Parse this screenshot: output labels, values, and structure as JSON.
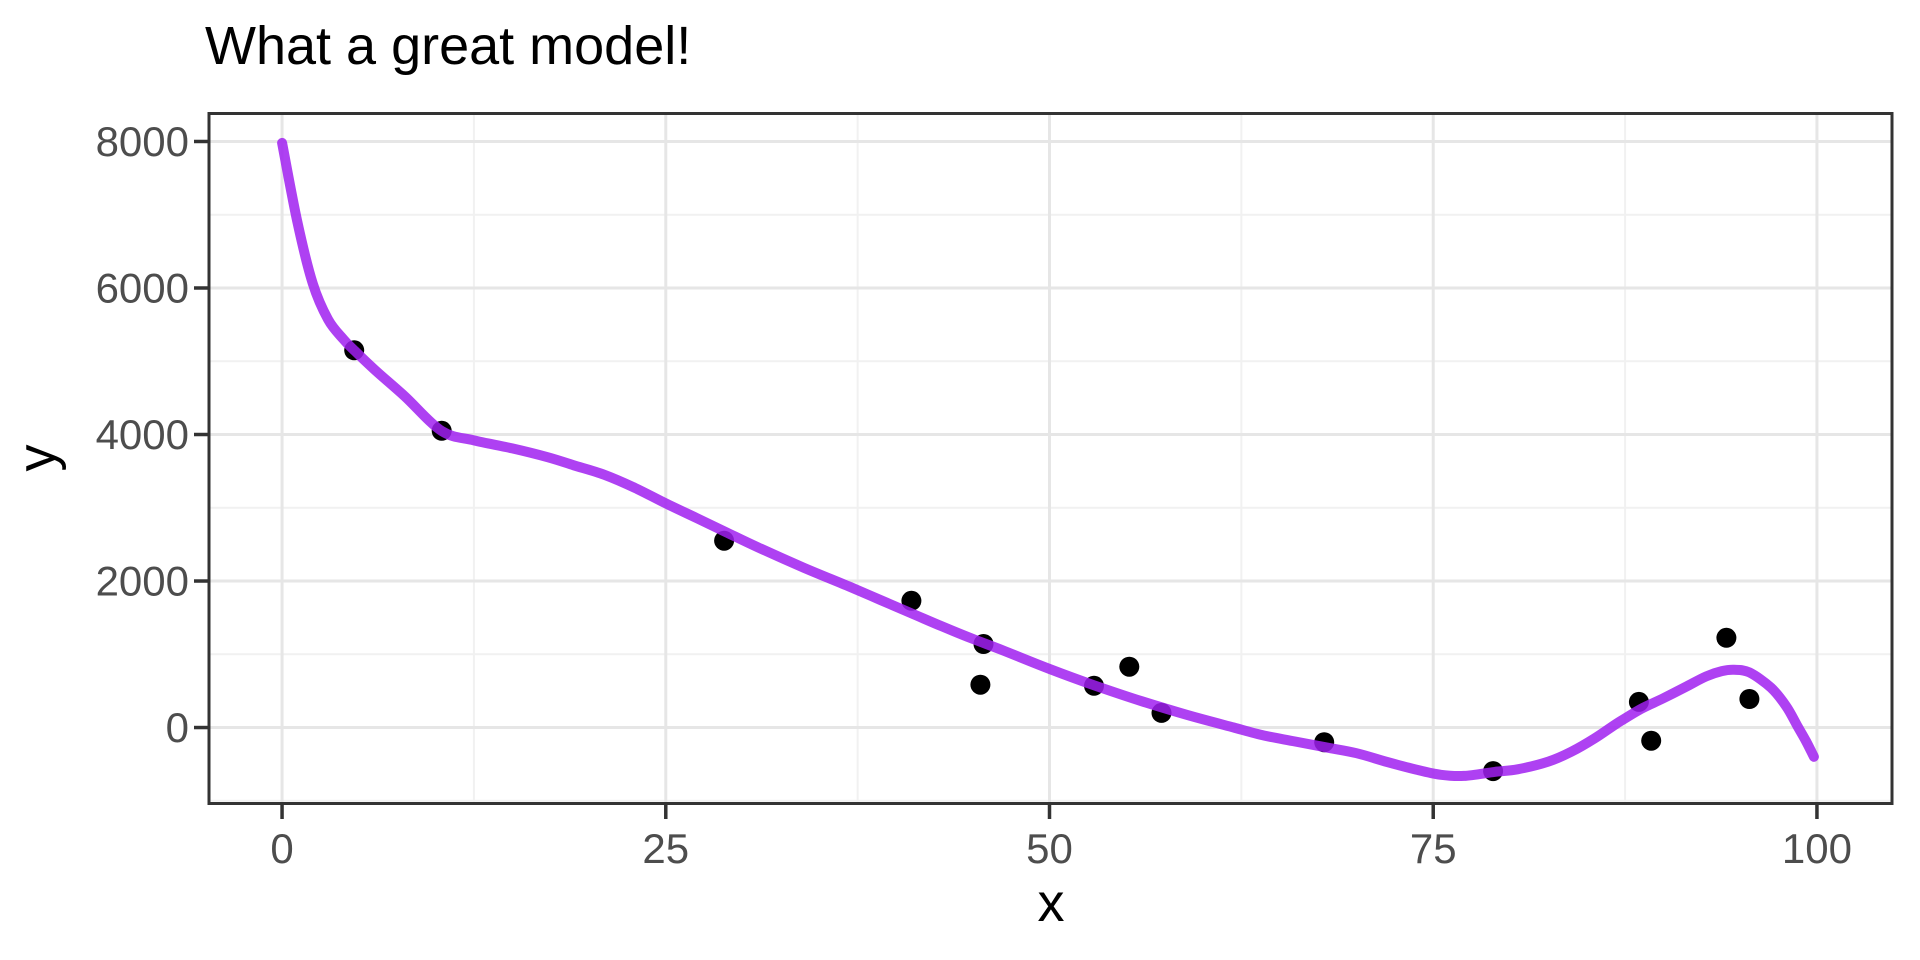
{
  "page": {
    "background": "#FFFFFF"
  },
  "chart_data": {
    "type": "scatter",
    "title": "What a great model!",
    "xlabel": "x",
    "ylabel": "y",
    "x_ticks": [
      0,
      25,
      50,
      75,
      100
    ],
    "y_ticks": [
      0,
      2000,
      4000,
      6000,
      8000
    ],
    "x_minor_ticks": [
      12.5,
      37.5,
      62.5,
      87.5
    ],
    "y_minor_ticks": [
      -1000,
      1000,
      3000,
      5000,
      7000
    ],
    "xlim": [
      -4.76,
      104.89
    ],
    "ylim": [
      -1037,
      8382
    ],
    "grid": "major+minor",
    "legend_position": "none",
    "series": [
      {
        "name": "observations",
        "type": "scatter",
        "points": [
          [
            4.7,
            5150
          ],
          [
            10.4,
            4050
          ],
          [
            28.8,
            2550
          ],
          [
            41.0,
            1730
          ],
          [
            45.7,
            1140
          ],
          [
            45.5,
            585
          ],
          [
            52.9,
            570
          ],
          [
            55.2,
            830
          ],
          [
            57.3,
            200
          ],
          [
            67.9,
            -200
          ],
          [
            78.9,
            -595
          ],
          [
            88.4,
            350
          ],
          [
            89.2,
            -180
          ],
          [
            94.1,
            1225
          ],
          [
            95.6,
            390
          ]
        ]
      },
      {
        "name": "polynomial-fit",
        "type": "line",
        "points": [
          [
            0,
            7980
          ],
          [
            1,
            6900
          ],
          [
            2,
            6060
          ],
          [
            3,
            5570
          ],
          [
            4,
            5300
          ],
          [
            4.7,
            5150
          ],
          [
            6,
            4890
          ],
          [
            8,
            4520
          ],
          [
            10.4,
            4048
          ],
          [
            12.5,
            3920
          ],
          [
            15,
            3810
          ],
          [
            17.3,
            3690
          ],
          [
            19,
            3580
          ],
          [
            21,
            3450
          ],
          [
            23,
            3270
          ],
          [
            25,
            3060
          ],
          [
            27,
            2860
          ],
          [
            29,
            2660
          ],
          [
            31,
            2460
          ],
          [
            34,
            2180
          ],
          [
            37,
            1920
          ],
          [
            39,
            1740
          ],
          [
            41,
            1560
          ],
          [
            43,
            1380
          ],
          [
            45,
            1210
          ],
          [
            47,
            1050
          ],
          [
            50,
            800
          ],
          [
            53,
            570
          ],
          [
            56,
            360
          ],
          [
            59,
            170
          ],
          [
            62,
            0
          ],
          [
            64,
            -110
          ],
          [
            66,
            -190
          ],
          [
            68,
            -270
          ],
          [
            70,
            -350
          ],
          [
            72,
            -470
          ],
          [
            74,
            -580
          ],
          [
            75.5,
            -645
          ],
          [
            77,
            -660
          ],
          [
            79,
            -605
          ],
          [
            80.5,
            -570
          ],
          [
            82.5,
            -465
          ],
          [
            84,
            -330
          ],
          [
            85.5,
            -150
          ],
          [
            87,
            60
          ],
          [
            88.5,
            250
          ],
          [
            90,
            400
          ],
          [
            91.5,
            560
          ],
          [
            92.8,
            700
          ],
          [
            93.8,
            770
          ],
          [
            94.6,
            788
          ],
          [
            95.6,
            752
          ],
          [
            97,
            545
          ],
          [
            98,
            290
          ],
          [
            98.7,
            30
          ],
          [
            99.3,
            -190
          ],
          [
            99.8,
            -400
          ]
        ]
      }
    ],
    "colors": {
      "point": "#000000",
      "smooth_line": "#A020F0",
      "smooth_line_opacity": 0.85,
      "grid_major": "#E6E6E6",
      "grid_minor": "#F1F1F1",
      "panel_border": "#333333",
      "tick_mark": "#333333",
      "tick_label": "#4D4D4D",
      "axis_title": "#000000",
      "title": "#000000",
      "panel_background": "#FFFFFF"
    }
  }
}
